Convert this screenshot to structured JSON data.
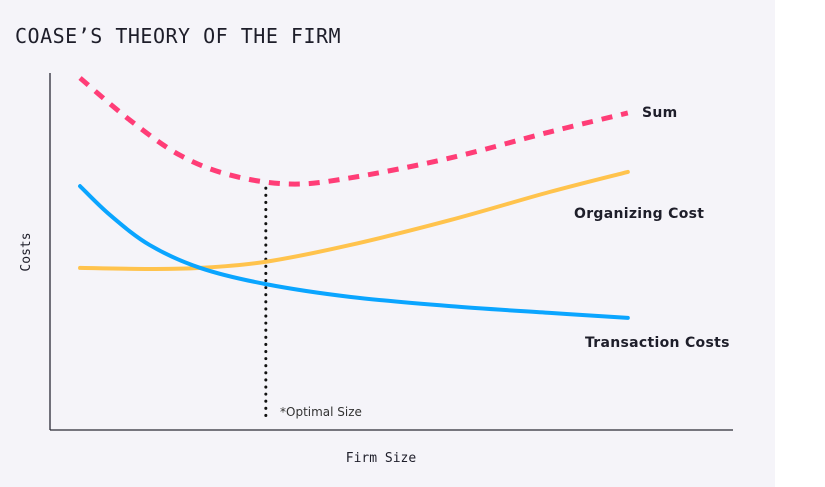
{
  "chart_data": {
    "type": "line",
    "title": "COASE’S THEORY OF THE FIRM",
    "xlabel": "Firm Size",
    "ylabel": "Costs",
    "xlim": [
      0,
      100
    ],
    "ylim": [
      0,
      100
    ],
    "grid": false,
    "series": [
      {
        "name": "Sum",
        "color": "#ff3d77",
        "style": "dashed",
        "x": [
          4.4,
          11.7,
          19,
          26.4,
          35.1,
          43.9,
          58.6,
          73.2,
          84.6
        ],
        "y": [
          98.6,
          86.8,
          77,
          71.4,
          68.9,
          70.6,
          76.2,
          83.5,
          88.8
        ]
      },
      {
        "name": "Organizing Cost",
        "color": "#ffc34d",
        "style": "solid",
        "x": [
          4.4,
          14.6,
          22,
          31.5,
          43.9,
          58.6,
          73.2,
          84.6
        ],
        "y": [
          45.4,
          45.1,
          45.4,
          47.1,
          51.8,
          58.8,
          66.7,
          72.3
        ]
      },
      {
        "name": "Transaction Costs",
        "color": "#0aa5ff",
        "style": "solid",
        "x": [
          4.4,
          8.8,
          14.6,
          22,
          31.5,
          43.9,
          58.6,
          73.2,
          84.6
        ],
        "y": [
          68.3,
          60.2,
          51.8,
          45.4,
          40.9,
          37.3,
          34.7,
          32.8,
          31.4
        ]
      }
    ],
    "annotations": [
      {
        "text": "*Optimal Size",
        "x": 31.6,
        "type": "vertical-dotted-line",
        "y_range": [
          3.4,
          68.3
        ]
      }
    ]
  }
}
